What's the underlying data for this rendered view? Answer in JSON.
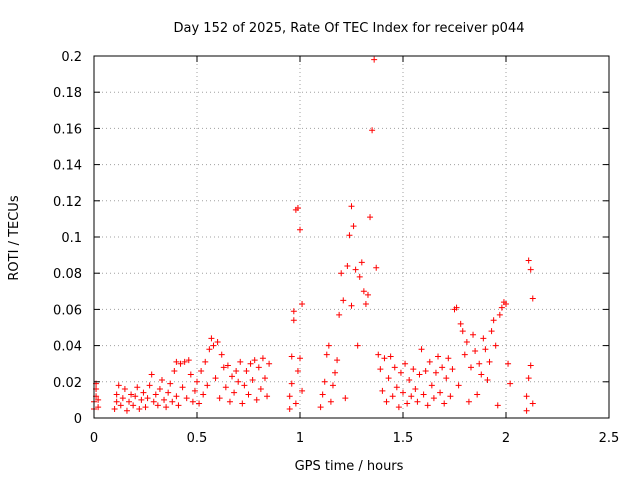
{
  "chart_data": {
    "type": "scatter",
    "title": "Day 152 of 2025, Rate Of TEC Index for receiver p044",
    "xlabel": "GPS time / hours",
    "ylabel": "ROTI / TECUs",
    "xlim": [
      0,
      2.5
    ],
    "ylim": [
      0,
      0.2
    ],
    "x_ticks": [
      0,
      0.5,
      1,
      1.5,
      2,
      2.5
    ],
    "x_tick_labels": [
      "0",
      "0.5",
      "1",
      "1.5",
      "2",
      "2.5"
    ],
    "y_ticks": [
      0,
      0.02,
      0.04,
      0.06,
      0.08,
      0.1,
      0.12,
      0.14,
      0.16,
      0.18,
      0.2
    ],
    "y_tick_labels": [
      "0",
      "0.02",
      "0.04",
      "0.06",
      "0.08",
      "0.1",
      "0.12",
      "0.14",
      "0.16",
      "0.18",
      "0.2"
    ],
    "grid": true,
    "marker": "+",
    "color": "#ff0000",
    "series": [
      {
        "name": "ROTI",
        "points": [
          [
            0.0,
            0.005
          ],
          [
            0.0,
            0.009
          ],
          [
            0.01,
            0.012
          ],
          [
            0.01,
            0.016
          ],
          [
            0.01,
            0.019
          ],
          [
            0.02,
            0.006
          ],
          [
            0.02,
            0.01
          ],
          [
            0.1,
            0.005
          ],
          [
            0.11,
            0.009
          ],
          [
            0.11,
            0.013
          ],
          [
            0.12,
            0.018
          ],
          [
            0.13,
            0.007
          ],
          [
            0.14,
            0.011
          ],
          [
            0.15,
            0.016
          ],
          [
            0.16,
            0.004
          ],
          [
            0.17,
            0.009
          ],
          [
            0.18,
            0.013
          ],
          [
            0.19,
            0.007
          ],
          [
            0.2,
            0.012
          ],
          [
            0.21,
            0.017
          ],
          [
            0.22,
            0.005
          ],
          [
            0.23,
            0.01
          ],
          [
            0.24,
            0.014
          ],
          [
            0.25,
            0.006
          ],
          [
            0.26,
            0.011
          ],
          [
            0.27,
            0.018
          ],
          [
            0.28,
            0.024
          ],
          [
            0.29,
            0.009
          ],
          [
            0.3,
            0.013
          ],
          [
            0.31,
            0.007
          ],
          [
            0.32,
            0.016
          ],
          [
            0.33,
            0.021
          ],
          [
            0.34,
            0.01
          ],
          [
            0.35,
            0.006
          ],
          [
            0.36,
            0.014
          ],
          [
            0.37,
            0.019
          ],
          [
            0.38,
            0.009
          ],
          [
            0.39,
            0.026
          ],
          [
            0.4,
            0.031
          ],
          [
            0.4,
            0.012
          ],
          [
            0.41,
            0.007
          ],
          [
            0.42,
            0.03
          ],
          [
            0.43,
            0.017
          ],
          [
            0.44,
            0.031
          ],
          [
            0.45,
            0.011
          ],
          [
            0.46,
            0.032
          ],
          [
            0.47,
            0.024
          ],
          [
            0.48,
            0.009
          ],
          [
            0.49,
            0.015
          ],
          [
            0.5,
            0.02
          ],
          [
            0.51,
            0.008
          ],
          [
            0.52,
            0.026
          ],
          [
            0.53,
            0.013
          ],
          [
            0.54,
            0.031
          ],
          [
            0.55,
            0.018
          ],
          [
            0.56,
            0.038
          ],
          [
            0.57,
            0.044
          ],
          [
            0.58,
            0.04
          ],
          [
            0.59,
            0.022
          ],
          [
            0.6,
            0.042
          ],
          [
            0.61,
            0.011
          ],
          [
            0.62,
            0.035
          ],
          [
            0.63,
            0.028
          ],
          [
            0.64,
            0.017
          ],
          [
            0.65,
            0.029
          ],
          [
            0.66,
            0.009
          ],
          [
            0.67,
            0.023
          ],
          [
            0.68,
            0.014
          ],
          [
            0.69,
            0.026
          ],
          [
            0.7,
            0.02
          ],
          [
            0.71,
            0.031
          ],
          [
            0.72,
            0.008
          ],
          [
            0.73,
            0.018
          ],
          [
            0.74,
            0.026
          ],
          [
            0.75,
            0.013
          ],
          [
            0.76,
            0.03
          ],
          [
            0.77,
            0.021
          ],
          [
            0.78,
            0.032
          ],
          [
            0.79,
            0.01
          ],
          [
            0.8,
            0.028
          ],
          [
            0.81,
            0.016
          ],
          [
            0.82,
            0.033
          ],
          [
            0.83,
            0.022
          ],
          [
            0.84,
            0.012
          ],
          [
            0.85,
            0.03
          ],
          [
            0.95,
            0.005
          ],
          [
            0.95,
            0.012
          ],
          [
            0.96,
            0.019
          ],
          [
            0.96,
            0.034
          ],
          [
            0.97,
            0.054
          ],
          [
            0.97,
            0.059
          ],
          [
            0.98,
            0.115
          ],
          [
            0.98,
            0.008
          ],
          [
            0.99,
            0.116
          ],
          [
            0.99,
            0.026
          ],
          [
            1.0,
            0.104
          ],
          [
            1.0,
            0.033
          ],
          [
            1.01,
            0.063
          ],
          [
            1.01,
            0.015
          ],
          [
            1.1,
            0.006
          ],
          [
            1.11,
            0.013
          ],
          [
            1.12,
            0.02
          ],
          [
            1.13,
            0.035
          ],
          [
            1.14,
            0.04
          ],
          [
            1.15,
            0.009
          ],
          [
            1.16,
            0.018
          ],
          [
            1.17,
            0.025
          ],
          [
            1.18,
            0.032
          ],
          [
            1.19,
            0.057
          ],
          [
            1.2,
            0.08
          ],
          [
            1.21,
            0.065
          ],
          [
            1.22,
            0.011
          ],
          [
            1.23,
            0.084
          ],
          [
            1.24,
            0.101
          ],
          [
            1.25,
            0.117
          ],
          [
            1.25,
            0.062
          ],
          [
            1.26,
            0.106
          ],
          [
            1.27,
            0.082
          ],
          [
            1.28,
            0.04
          ],
          [
            1.29,
            0.078
          ],
          [
            1.3,
            0.086
          ],
          [
            1.31,
            0.07
          ],
          [
            1.32,
            0.063
          ],
          [
            1.33,
            0.068
          ],
          [
            1.34,
            0.111
          ],
          [
            1.35,
            0.159
          ],
          [
            1.36,
            0.198
          ],
          [
            1.37,
            0.083
          ],
          [
            1.38,
            0.035
          ],
          [
            1.39,
            0.027
          ],
          [
            1.4,
            0.015
          ],
          [
            1.41,
            0.033
          ],
          [
            1.42,
            0.009
          ],
          [
            1.43,
            0.022
          ],
          [
            1.44,
            0.034
          ],
          [
            1.45,
            0.012
          ],
          [
            1.46,
            0.028
          ],
          [
            1.47,
            0.017
          ],
          [
            1.48,
            0.006
          ],
          [
            1.49,
            0.025
          ],
          [
            1.5,
            0.014
          ],
          [
            1.51,
            0.03
          ],
          [
            1.52,
            0.008
          ],
          [
            1.53,
            0.021
          ],
          [
            1.54,
            0.012
          ],
          [
            1.55,
            0.027
          ],
          [
            1.56,
            0.016
          ],
          [
            1.57,
            0.009
          ],
          [
            1.58,
            0.024
          ],
          [
            1.59,
            0.038
          ],
          [
            1.6,
            0.013
          ],
          [
            1.61,
            0.026
          ],
          [
            1.62,
            0.007
          ],
          [
            1.63,
            0.031
          ],
          [
            1.64,
            0.018
          ],
          [
            1.65,
            0.011
          ],
          [
            1.66,
            0.025
          ],
          [
            1.67,
            0.034
          ],
          [
            1.68,
            0.014
          ],
          [
            1.69,
            0.028
          ],
          [
            1.7,
            0.008
          ],
          [
            1.71,
            0.022
          ],
          [
            1.72,
            0.033
          ],
          [
            1.73,
            0.012
          ],
          [
            1.74,
            0.027
          ],
          [
            1.75,
            0.06
          ],
          [
            1.76,
            0.061
          ],
          [
            1.77,
            0.018
          ],
          [
            1.78,
            0.052
          ],
          [
            1.79,
            0.048
          ],
          [
            1.8,
            0.035
          ],
          [
            1.81,
            0.042
          ],
          [
            1.82,
            0.009
          ],
          [
            1.83,
            0.028
          ],
          [
            1.84,
            0.046
          ],
          [
            1.85,
            0.037
          ],
          [
            1.86,
            0.013
          ],
          [
            1.87,
            0.03
          ],
          [
            1.88,
            0.024
          ],
          [
            1.89,
            0.044
          ],
          [
            1.9,
            0.038
          ],
          [
            1.91,
            0.021
          ],
          [
            1.92,
            0.031
          ],
          [
            1.93,
            0.048
          ],
          [
            1.94,
            0.054
          ],
          [
            1.95,
            0.04
          ],
          [
            1.96,
            0.007
          ],
          [
            1.97,
            0.057
          ],
          [
            1.98,
            0.061
          ],
          [
            1.99,
            0.064
          ],
          [
            2.0,
            0.063
          ],
          [
            2.01,
            0.03
          ],
          [
            2.02,
            0.019
          ],
          [
            2.1,
            0.004
          ],
          [
            2.1,
            0.012
          ],
          [
            2.11,
            0.087
          ],
          [
            2.11,
            0.022
          ],
          [
            2.12,
            0.082
          ],
          [
            2.12,
            0.029
          ],
          [
            2.13,
            0.066
          ],
          [
            2.13,
            0.008
          ]
        ]
      }
    ]
  }
}
